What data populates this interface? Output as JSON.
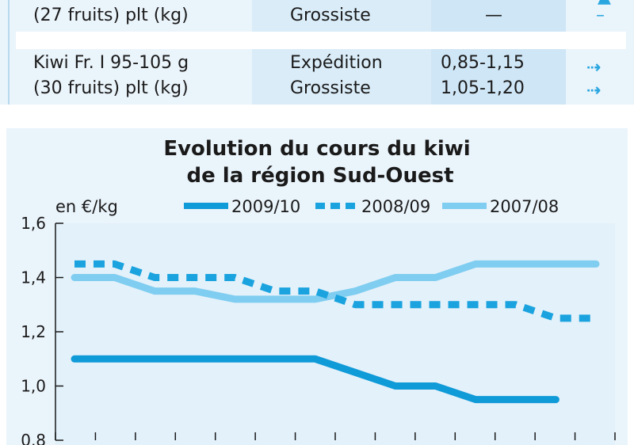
{
  "table": {
    "rows": [
      {
        "product": [
          "",
          "(27 fruits) plt (kg)"
        ],
        "stage": [
          "",
          "Grossiste"
        ],
        "price": [
          "",
          "—"
        ],
        "trend": [
          "",
          "–"
        ]
      },
      {
        "product": [
          "Kiwi Fr. I 95-105 g",
          "(30 fruits) plt (kg)"
        ],
        "stage": [
          "Expédition",
          "Grossiste"
        ],
        "price": [
          "0,85-1,15",
          "1,05-1,20"
        ],
        "trend": [
          "arrow-right",
          "arrow-right"
        ]
      }
    ]
  },
  "chart_data": {
    "type": "line",
    "title": "Evolution du cours du kiwi\nde la région Sud-Ouest",
    "title_lines": [
      "Evolution du cours du kiwi",
      "de la région Sud-Ouest"
    ],
    "ylabel": "en €/kg",
    "ylim": [
      0.8,
      1.6
    ],
    "yticks": [
      "1,6",
      "1,4",
      "1,2",
      "1,0",
      "0,8"
    ],
    "ytick_values": [
      1.6,
      1.4,
      1.2,
      1.0,
      0.8
    ],
    "x": [
      0,
      1,
      2,
      3,
      4,
      5,
      6,
      7,
      8,
      9,
      10,
      11,
      12,
      13
    ],
    "legend_placement": "top",
    "series": [
      {
        "name": "2009/10",
        "style": "solid",
        "color": "#0f9ad8",
        "values": [
          1.1,
          1.1,
          1.1,
          1.1,
          1.1,
          1.1,
          1.1,
          1.05,
          1.0,
          1.0,
          0.95,
          0.95,
          0.95,
          null
        ]
      },
      {
        "name": "2008/09",
        "style": "dashed",
        "color": "#1aa3de",
        "values": [
          1.45,
          1.45,
          1.4,
          1.4,
          1.4,
          1.35,
          1.35,
          1.3,
          1.3,
          1.3,
          1.3,
          1.3,
          1.25,
          1.25
        ]
      },
      {
        "name": "2007/08",
        "style": "solid",
        "color": "#7fcdf0",
        "values": [
          1.4,
          1.4,
          1.35,
          1.35,
          1.32,
          1.32,
          1.32,
          1.35,
          1.4,
          1.4,
          1.45,
          1.45,
          1.45,
          1.45
        ]
      }
    ]
  }
}
